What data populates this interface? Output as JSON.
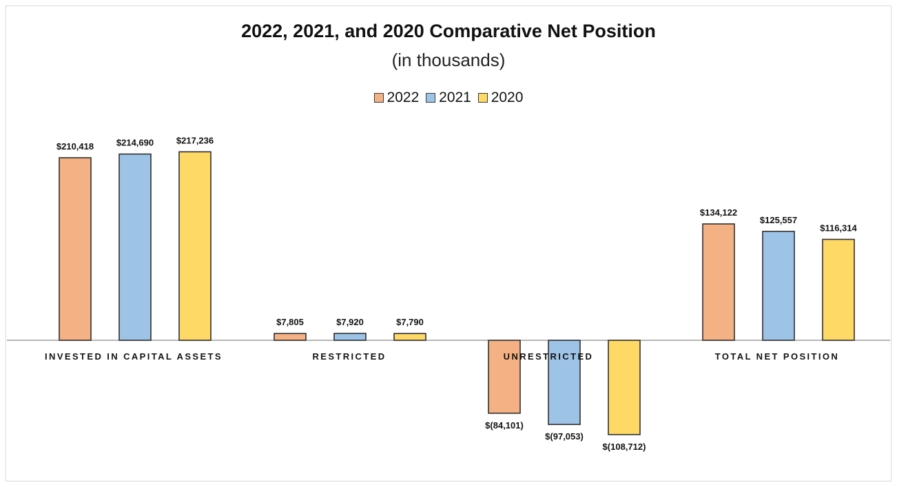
{
  "chart_data": {
    "type": "bar",
    "title": "2022, 2021, and 2020 Comparative Net Position",
    "subtitle": "(in thousands)",
    "categories": [
      "INVESTED IN CAPITAL ASSETS",
      "RESTRICTED",
      "UNRESTRICTED",
      "TOTAL NET POSITION"
    ],
    "series": [
      {
        "name": "2022",
        "color": "#f4b183",
        "values": [
          210418,
          7805,
          -84101,
          134122
        ],
        "labels": [
          "$210,418",
          "$7,805",
          "$(84,101)",
          "$134,122"
        ]
      },
      {
        "name": "2021",
        "color": "#9dc3e6",
        "values": [
          214690,
          7920,
          -97053,
          125557
        ],
        "labels": [
          "$214,690",
          "$7,920",
          "$(97,053)",
          "$125,557"
        ]
      },
      {
        "name": "2020",
        "color": "#ffd966",
        "values": [
          217236,
          7790,
          -108712,
          116314
        ],
        "labels": [
          "$217,236",
          "$7,790",
          "$(108,712)",
          "$116,314"
        ]
      }
    ],
    "legend_position": "top-center",
    "grid": false,
    "xlabel": "",
    "ylabel": ""
  }
}
